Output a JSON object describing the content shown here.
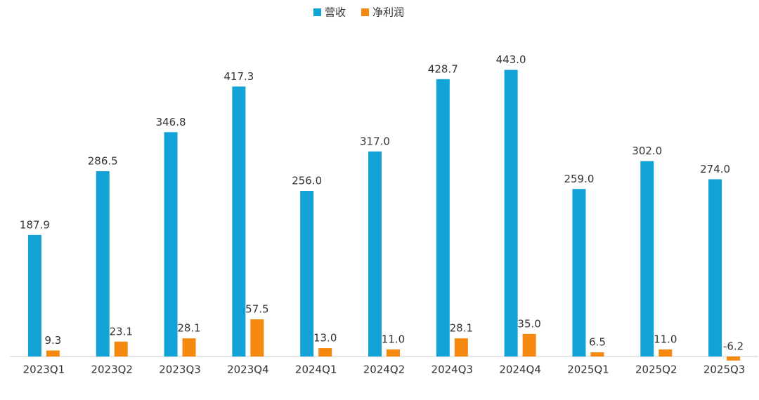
{
  "chart_data": {
    "type": "bar",
    "categories": [
      "2023Q1",
      "2023Q2",
      "2023Q3",
      "2023Q4",
      "2024Q1",
      "2024Q2",
      "2024Q3",
      "2024Q4",
      "2025Q1",
      "2025Q2",
      "2025Q3"
    ],
    "series": [
      {
        "name": "营收",
        "color": "#12a2d6",
        "values": [
          187.9,
          286.5,
          346.8,
          417.3,
          256.0,
          317.0,
          428.7,
          443.0,
          259.0,
          302.0,
          274.0
        ],
        "value_labels": [
          "187.9",
          "286.5",
          "346.8",
          "417.3",
          "256.0",
          "317.0",
          "428.7",
          "443.0",
          "259.0",
          "302.0",
          "274.0"
        ]
      },
      {
        "name": "净利润",
        "color": "#f5880f",
        "values": [
          9.3,
          23.1,
          28.1,
          57.5,
          13.0,
          11.0,
          28.1,
          35.0,
          6.5,
          11.0,
          -6.2
        ],
        "value_labels": [
          "9.3",
          "23.1",
          "28.1",
          "57.5",
          "13.0",
          "11.0",
          "28.1",
          "35.0",
          "6.5",
          "11.0",
          "-6.2"
        ]
      }
    ],
    "ylim": [
      -20,
      480
    ],
    "legend": "top"
  }
}
